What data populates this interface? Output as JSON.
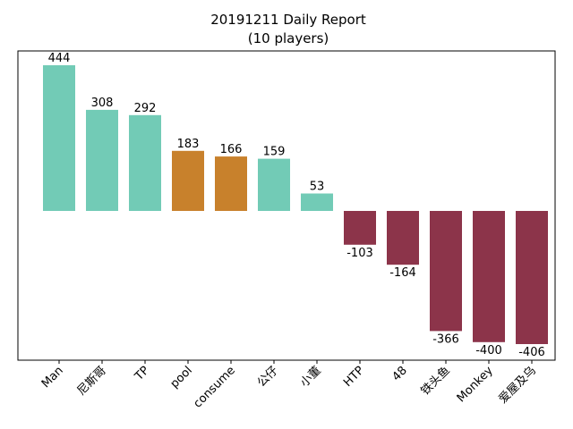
{
  "chart_data": {
    "type": "bar",
    "title": "20191211 Daily Report",
    "subtitle": "(10 players)",
    "xlabel": "",
    "ylabel": "",
    "categories": [
      "Man",
      "尼斯哥",
      "TP",
      "pool",
      "consume",
      "公仔",
      "小董",
      "HTP",
      "48",
      "铁头鱼",
      "Monkey",
      "爱屋及乌"
    ],
    "values": [
      444,
      308,
      292,
      183,
      166,
      159,
      53,
      -103,
      -164,
      -366,
      -400,
      -406
    ],
    "value_labels": [
      "444",
      "308",
      "292",
      "183",
      "166",
      "159",
      "53",
      "-103",
      "-164",
      "-366",
      "-400",
      "-406"
    ],
    "bar_colors": [
      "#72cbb6",
      "#72cbb6",
      "#72cbb6",
      "#c8812c",
      "#c8812c",
      "#72cbb6",
      "#72cbb6",
      "#8c344a",
      "#8c344a",
      "#8c344a",
      "#8c344a",
      "#8c344a"
    ],
    "ylim": [
      -450,
      450
    ],
    "grid": false,
    "legend": "none"
  }
}
